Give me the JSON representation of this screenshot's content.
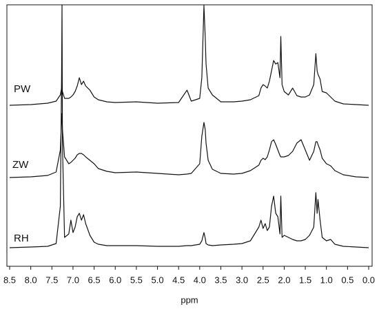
{
  "chart_data": {
    "type": "line",
    "x_label": "ppm",
    "xlim": [
      8.5,
      0
    ],
    "xticks": [
      8.5,
      {
        "value": 8,
        "label": "8.0"
      },
      7.5,
      {
        "value": 7,
        "label": "7.0"
      },
      6.5,
      {
        "value": 6,
        "label": "6.0"
      },
      5.5,
      {
        "value": 5,
        "label": "5.0"
      },
      4.5,
      {
        "value": 4,
        "label": "4.0"
      },
      3.5,
      {
        "value": 3,
        "label": "3.0"
      },
      2.5,
      {
        "value": 2,
        "label": "2.0"
      },
      1.5,
      {
        "value": 1,
        "label": "1.0"
      },
      0.5,
      {
        "value": 0,
        "label": "0.0"
      }
    ],
    "x": [
      8.5,
      8.0,
      7.6,
      7.4,
      7.3,
      7.27,
      7.26,
      7.25,
      7.2,
      7.1,
      7.05,
      7.0,
      6.95,
      6.9,
      6.85,
      6.8,
      6.75,
      6.7,
      6.6,
      6.5,
      6.4,
      6.2,
      6.0,
      5.5,
      5.0,
      4.5,
      4.3,
      4.2,
      4.0,
      3.95,
      3.9,
      3.87,
      3.85,
      3.8,
      3.7,
      3.5,
      3.2,
      3.0,
      2.8,
      2.6,
      2.55,
      2.5,
      2.45,
      2.4,
      2.35,
      2.3,
      2.25,
      2.2,
      2.15,
      2.1,
      2.08,
      2.05,
      2.0,
      1.9,
      1.8,
      1.7,
      1.6,
      1.5,
      1.4,
      1.3,
      1.25,
      1.22,
      1.2,
      1.15,
      1.1,
      1.0,
      0.9,
      0.8,
      0.6,
      0.3,
      0.0
    ],
    "series": [
      {
        "name": "PW",
        "color": "#111111",
        "values": [
          0,
          1,
          3,
          6,
          15,
          25,
          30,
          20,
          10,
          10,
          12,
          15,
          20,
          28,
          40,
          30,
          35,
          28,
          22,
          12,
          8,
          5,
          4,
          5,
          3,
          4,
          22,
          6,
          10,
          40,
          145,
          100,
          60,
          25,
          15,
          5,
          5,
          6,
          8,
          14,
          25,
          30,
          28,
          25,
          35,
          50,
          65,
          60,
          62,
          40,
          100,
          30,
          20,
          15,
          25,
          14,
          12,
          12,
          15,
          30,
          75,
          50,
          45,
          38,
          20,
          18,
          12,
          6,
          2,
          1,
          0
        ]
      },
      {
        "name": "ZW",
        "color": "#111111",
        "values": [
          0,
          1,
          3,
          8,
          40,
          85,
          93,
          70,
          30,
          20,
          22,
          25,
          28,
          33,
          35,
          35,
          33,
          30,
          25,
          20,
          13,
          9,
          7,
          8,
          6,
          4,
          5,
          6,
          20,
          60,
          80,
          70,
          50,
          25,
          12,
          6,
          5,
          6,
          10,
          18,
          25,
          28,
          26,
          30,
          40,
          52,
          55,
          48,
          40,
          32,
          30,
          30,
          30,
          32,
          38,
          50,
          55,
          40,
          25,
          38,
          52,
          52,
          48,
          40,
          28,
          20,
          17,
          10,
          4,
          1,
          0
        ]
      },
      {
        "name": "RH",
        "color": "#111111",
        "values": [
          0,
          1,
          2,
          6,
          60,
          250,
          353,
          150,
          15,
          20,
          40,
          22,
          30,
          45,
          50,
          40,
          48,
          35,
          18,
          8,
          5,
          3,
          3,
          3,
          2,
          2,
          3,
          3,
          5,
          10,
          22,
          14,
          6,
          4,
          3,
          4,
          5,
          6,
          10,
          30,
          40,
          28,
          35,
          25,
          30,
          60,
          75,
          50,
          45,
          20,
          75,
          15,
          18,
          15,
          12,
          10,
          10,
          12,
          18,
          30,
          80,
          50,
          70,
          40,
          15,
          10,
          12,
          5,
          2,
          1,
          0
        ]
      }
    ]
  }
}
